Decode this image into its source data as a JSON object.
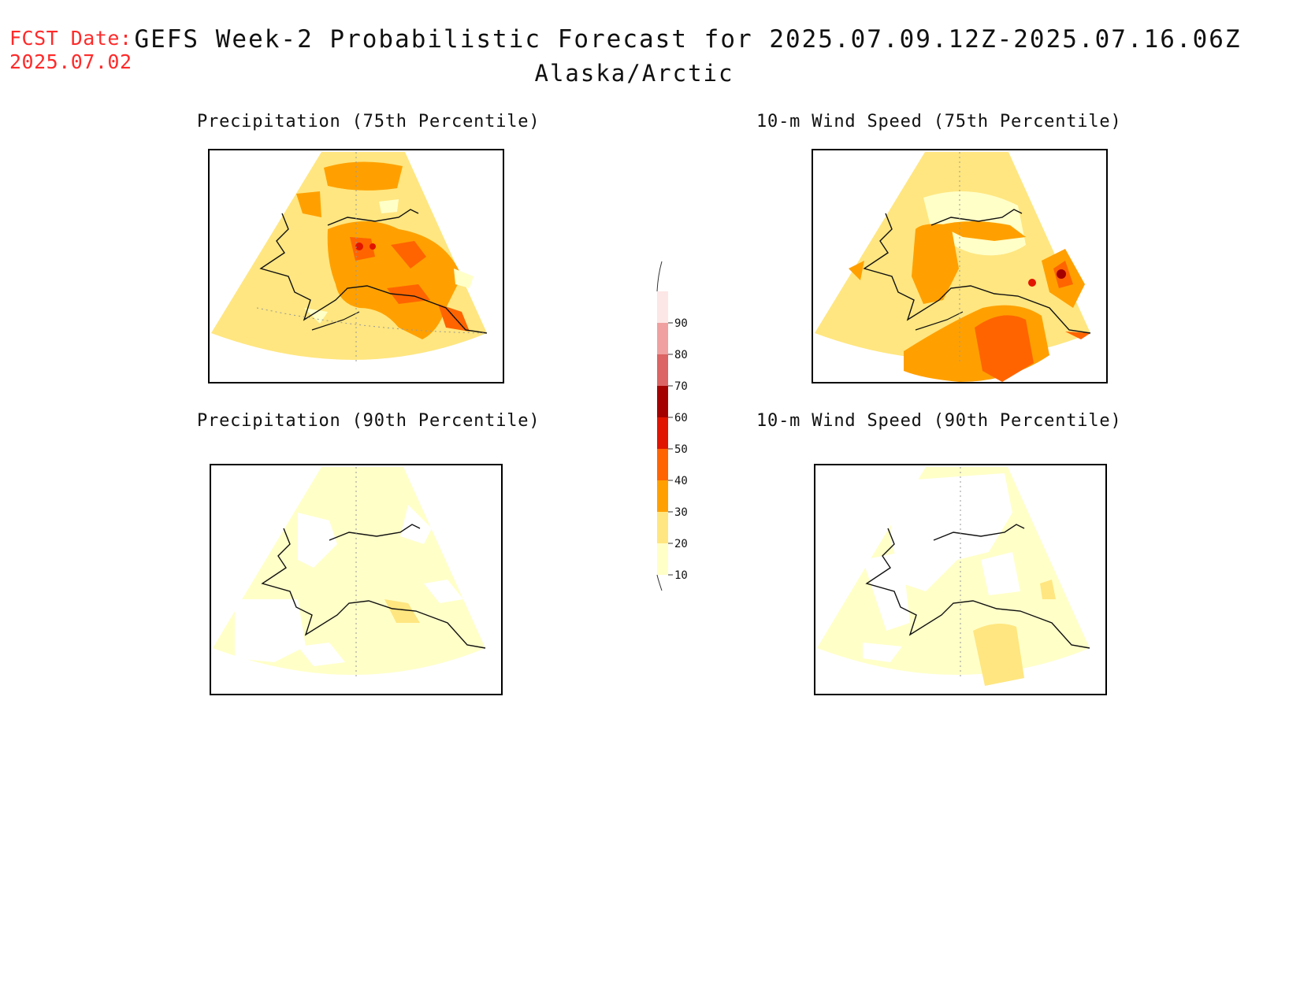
{
  "header": {
    "fcst_label": "FCST Date:",
    "fcst_date": "2025.07.02",
    "title": "GEFS Week-2 Probabilistic Forecast for 2025.07.09.12Z-2025.07.16.06Z",
    "subtitle": "Alaska/Arctic"
  },
  "panels": [
    {
      "id": "precip-75",
      "title": "Precipitation (75th Percentile)"
    },
    {
      "id": "wind-75",
      "title": "10-m Wind Speed (75th Percentile)"
    },
    {
      "id": "precip-90",
      "title": "Precipitation (90th Percentile)"
    },
    {
      "id": "wind-90",
      "title": "10-m Wind Speed (90th Percentile)"
    }
  ],
  "colorbar": {
    "levels": [
      {
        "value": "10",
        "color": "#ffffc8"
      },
      {
        "value": "20",
        "color": "#ffe680"
      },
      {
        "value": "30",
        "color": "#ffa000"
      },
      {
        "value": "40",
        "color": "#ff6400"
      },
      {
        "value": "50",
        "color": "#e11400"
      },
      {
        "value": "60",
        "color": "#a50000"
      },
      {
        "value": "70",
        "color": "#dc6464"
      },
      {
        "value": "80",
        "color": "#f0a0a0"
      },
      {
        "value": "90",
        "color": "#fde6e6"
      }
    ]
  }
}
